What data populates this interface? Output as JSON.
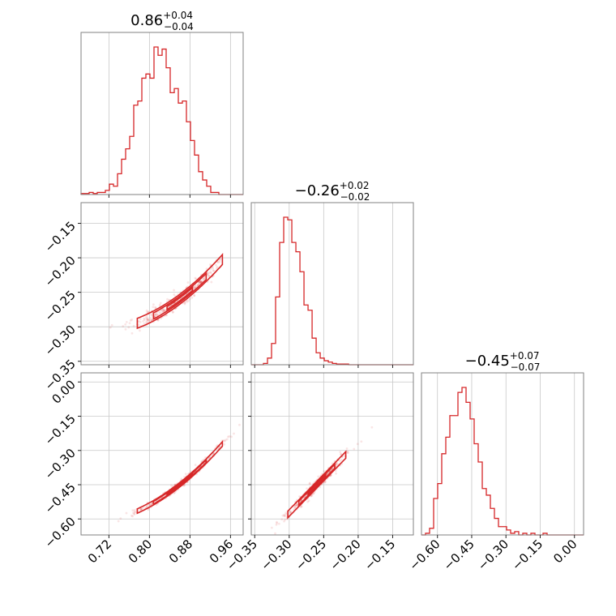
{
  "colors": {
    "accent": "#d62728",
    "grid": "#c8c8c8",
    "frame": "#808080"
  },
  "chart_data": {
    "type": "corner",
    "grid": true,
    "parameters": [
      {
        "median": "0.86",
        "plus": "+0.04",
        "minus": "−0.04",
        "range": [
          0.665,
          0.985
        ],
        "ticks": [
          0.72,
          0.8,
          0.88,
          0.96
        ],
        "tick_labels": [
          "0.72",
          "0.80",
          "0.88",
          "0.96"
        ]
      },
      {
        "median": "−0.26",
        "plus": "+0.02",
        "minus": "−0.02",
        "range": [
          -0.355,
          -0.12
        ],
        "ticks": [
          -0.35,
          -0.3,
          -0.25,
          -0.2,
          -0.15
        ],
        "tick_labels": [
          "−0.35",
          "−0.30",
          "−0.25",
          "−0.20",
          "−0.15"
        ]
      },
      {
        "median": "−0.45",
        "plus": "+0.07",
        "minus": "−0.07",
        "range": [
          -0.67,
          0.04
        ],
        "ticks": [
          -0.6,
          -0.45,
          -0.3,
          -0.15,
          0.0
        ],
        "tick_labels": [
          "−0.60",
          "−0.45",
          "−0.30",
          "−0.15",
          "0.00"
        ]
      }
    ],
    "histograms": [
      {
        "param": 0,
        "bin_start": 0.665,
        "bin_width": 0.008,
        "counts": [
          0.5,
          0.5,
          1,
          0.5,
          1,
          1,
          2,
          5,
          4,
          10,
          17,
          22,
          28,
          43,
          45,
          56,
          58,
          56,
          71,
          67,
          70,
          61,
          49,
          51,
          44,
          45,
          35,
          26,
          19,
          11,
          7,
          4,
          1,
          1,
          0,
          0,
          0,
          0,
          0,
          0
        ]
      },
      {
        "param": 1,
        "bin_start": -0.355,
        "bin_width": 0.00588,
        "counts": [
          0,
          0,
          0,
          1,
          5,
          16,
          51,
          92,
          111,
          109,
          92,
          85,
          70,
          45,
          41,
          20,
          9,
          5,
          3,
          2,
          1,
          0.5,
          0.5,
          0.5,
          0,
          0,
          0,
          0,
          0,
          0,
          0,
          0,
          0,
          0,
          0,
          0,
          0,
          0,
          0,
          0
        ]
      },
      {
        "param": 2,
        "bin_start": -0.67,
        "bin_width": 0.01775,
        "counts": [
          0,
          1,
          4,
          22,
          31,
          49,
          59,
          72,
          72,
          86,
          89,
          80,
          70,
          55,
          44,
          28,
          24,
          16,
          10,
          5,
          5,
          3,
          1,
          2,
          0,
          1,
          0,
          1,
          0,
          0,
          1,
          0,
          0,
          0,
          0,
          0,
          0,
          0,
          0,
          0
        ]
      }
    ],
    "pairs": [
      {
        "x_param": 0,
        "y_param": 1
      },
      {
        "x_param": 0,
        "y_param": 2
      },
      {
        "x_param": 1,
        "y_param": 2
      }
    ]
  }
}
